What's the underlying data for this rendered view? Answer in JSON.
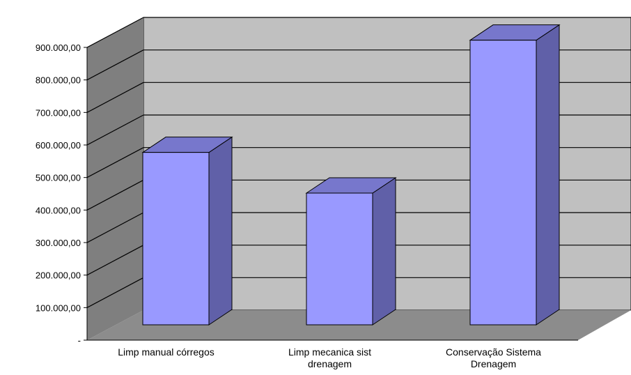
{
  "chart_data": {
    "type": "bar",
    "title": "",
    "xlabel": "",
    "ylabel": "",
    "categories": [
      [
        "Limp manual córregos"
      ],
      [
        "Limp mecanica sist",
        "drenagem"
      ],
      [
        "Conservação Sistema",
        "Drenagem"
      ]
    ],
    "values": [
      530000,
      405000,
      875000
    ],
    "ylim": [
      0,
      900000
    ],
    "yticks": [
      0,
      100000,
      200000,
      300000,
      400000,
      500000,
      600000,
      700000,
      800000,
      900000
    ],
    "ytick_labels": [
      "-",
      "100.000,00",
      "200.000,00",
      "300.000,00",
      "400.000,00",
      "500.000,00",
      "600.000,00",
      "700.000,00",
      "800.000,00",
      "900.000,00"
    ],
    "grid": true,
    "three_d": true,
    "colors": {
      "bar_front": "#9999ff",
      "bar_side": "#6060a8",
      "bar_top": "#7777cc",
      "back_wall": "#c0c0c0",
      "side_wall": "#7f7f7f",
      "floor": "#8c8c8c",
      "grid": "#000000"
    }
  }
}
